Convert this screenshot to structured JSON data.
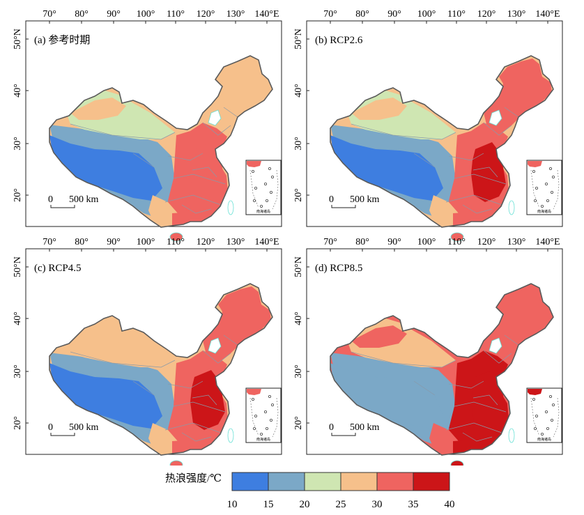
{
  "axes": {
    "lon_labels": [
      "70°",
      "80°",
      "90°",
      "100°",
      "110°",
      "120°",
      "130°",
      "140°E"
    ],
    "lat_labels": [
      "20°",
      "30°",
      "40°",
      "50°N"
    ]
  },
  "panels": [
    {
      "label": "(a) 参考时期",
      "scale_zero": "0",
      "scale_text": "500 km",
      "inset_label": "南海诸岛"
    },
    {
      "label": "(b) RCP2.6",
      "scale_zero": "0",
      "scale_text": "500 km",
      "inset_label": "南海诸岛"
    },
    {
      "label": "(c) RCP4.5",
      "scale_zero": "0",
      "scale_text": "500 km",
      "inset_label": "南海诸岛"
    },
    {
      "label": "(d) RCP8.5",
      "scale_zero": "0",
      "scale_text": "500 km",
      "inset_label": "南海诸岛"
    }
  ],
  "legend": {
    "title": "热浪强度/℃",
    "colors": [
      "#3e7ee0",
      "#7ba8c7",
      "#cfe6b2",
      "#f6c08b",
      "#ef6460",
      "#cc1518"
    ],
    "ticks": [
      "10",
      "15",
      "20",
      "25",
      "30",
      "35",
      "40"
    ]
  },
  "colors": {
    "c10_15": "#3e7ee0",
    "c15_20": "#7ba8c7",
    "c20_25": "#cfe6b2",
    "c25_30": "#f6c08b",
    "c30_35": "#ef6460",
    "c35_40": "#cc1518",
    "border": "#8a9aa8",
    "coast": "#66e0d4"
  }
}
